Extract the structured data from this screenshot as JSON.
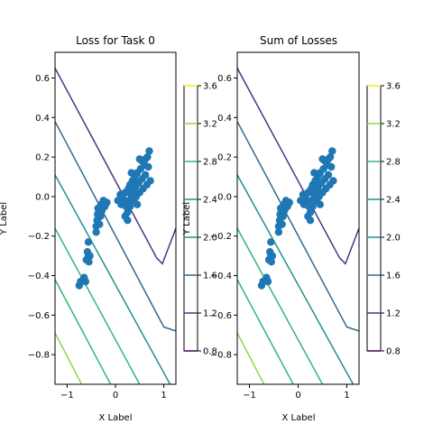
{
  "chart_data": [
    {
      "type": "contour",
      "title": "Loss for Task 0",
      "xlabel": "X Label",
      "ylabel": "Y Label",
      "xlim": [
        -1.25,
        1.25
      ],
      "ylim": [
        -0.95,
        0.73
      ],
      "xticks": [
        {
          "v": -1,
          "label": "−1"
        },
        {
          "v": 0,
          "label": "0"
        },
        {
          "v": 1,
          "label": "1"
        }
      ],
      "yticks": [
        {
          "v": -0.8,
          "label": "−0.8"
        },
        {
          "v": -0.6,
          "label": "−0.6"
        },
        {
          "v": -0.4,
          "label": "−0.4"
        },
        {
          "v": -0.2,
          "label": "−0.2"
        },
        {
          "v": 0.0,
          "label": "0.0"
        },
        {
          "v": 0.2,
          "label": "0.2"
        },
        {
          "v": 0.4,
          "label": "0.4"
        },
        {
          "v": 0.6,
          "label": "0.6"
        }
      ],
      "levels": [
        {
          "level": 1.2,
          "color": "#443983",
          "points": [
            [
              -1.25,
              0.65
            ],
            [
              0.85,
              -0.31
            ],
            [
              0.97,
              -0.34
            ],
            [
              1.25,
              -0.16
            ]
          ]
        },
        {
          "level": 1.6,
          "color": "#31688e",
          "points": [
            [
              -1.25,
              0.38
            ],
            [
              1.0,
              -0.66
            ],
            [
              1.25,
              -0.68
            ]
          ]
        },
        {
          "level": 2.0,
          "color": "#21918c",
          "points": [
            [
              -1.25,
              0.11
            ],
            [
              1.13,
              -0.95
            ]
          ]
        },
        {
          "level": 2.4,
          "color": "#35b779",
          "points": [
            [
              -1.25,
              -0.16
            ],
            [
              0.5,
              -0.95
            ]
          ]
        },
        {
          "level": 2.8,
          "color": "#35b779",
          "points": [
            [
              -1.25,
              -0.42
            ],
            [
              -0.1,
              -0.95
            ]
          ]
        },
        {
          "level": 3.2,
          "color": "#90d743",
          "points": [
            [
              -1.25,
              -0.69
            ],
            [
              -0.7,
              -0.95
            ]
          ]
        }
      ],
      "scatter": {
        "color": "#1f77b4",
        "points": [
          [
            -0.75,
            -0.45
          ],
          [
            -0.72,
            -0.43
          ],
          [
            -0.65,
            -0.41
          ],
          [
            -0.62,
            -0.43
          ],
          [
            -0.6,
            -0.32
          ],
          [
            -0.58,
            -0.28
          ],
          [
            -0.56,
            -0.3
          ],
          [
            -0.55,
            -0.33
          ],
          [
            -0.53,
            -0.3
          ],
          [
            -0.56,
            -0.23
          ],
          [
            -0.4,
            -0.18
          ],
          [
            -0.4,
            -0.15
          ],
          [
            -0.38,
            -0.12
          ],
          [
            -0.37,
            -0.09
          ],
          [
            -0.36,
            -0.06
          ],
          [
            -0.33,
            -0.14
          ],
          [
            -0.31,
            -0.1
          ],
          [
            -0.3,
            -0.04
          ],
          [
            -0.28,
            -0.07
          ],
          [
            -0.25,
            -0.02
          ],
          [
            -0.22,
            -0.05
          ],
          [
            -0.18,
            -0.03
          ],
          [
            0.05,
            -0.02
          ],
          [
            0.1,
            0.01
          ],
          [
            0.12,
            -0.04
          ],
          [
            0.15,
            0.0
          ],
          [
            0.18,
            -0.02
          ],
          [
            0.2,
            0.02
          ],
          [
            0.22,
            -0.05
          ],
          [
            0.25,
            -0.08
          ],
          [
            0.27,
            0.04
          ],
          [
            0.28,
            -0.02
          ],
          [
            0.3,
            0.06
          ],
          [
            0.32,
            0.01
          ],
          [
            0.35,
            0.08
          ],
          [
            0.37,
            0.03
          ],
          [
            0.4,
            0.1
          ],
          [
            0.41,
            0.05
          ],
          [
            0.43,
            0.0
          ],
          [
            0.45,
            0.12
          ],
          [
            0.48,
            0.07
          ],
          [
            0.5,
            0.02
          ],
          [
            0.52,
            0.14
          ],
          [
            0.55,
            0.09
          ],
          [
            0.57,
            0.04
          ],
          [
            0.6,
            0.16
          ],
          [
            0.62,
            0.11
          ],
          [
            0.65,
            0.06
          ],
          [
            0.66,
            0.2
          ],
          [
            0.7,
            0.23
          ],
          [
            0.68,
            0.15
          ],
          [
            0.72,
            0.08
          ],
          [
            0.55,
            0.18
          ],
          [
            0.62,
            0.19
          ],
          [
            0.3,
            -0.05
          ],
          [
            0.25,
            -0.12
          ],
          [
            0.2,
            -0.1
          ],
          [
            0.38,
            -0.02
          ],
          [
            0.45,
            -0.04
          ],
          [
            0.33,
            0.12
          ],
          [
            0.5,
            0.19
          ]
        ]
      }
    },
    {
      "type": "contour",
      "title": "Sum of Losses",
      "xlabel": "X Label",
      "ylabel": "Y Label",
      "xlim": [
        -1.25,
        1.25
      ],
      "ylim": [
        -0.95,
        0.73
      ],
      "xticks": [
        {
          "v": -1,
          "label": "−1"
        },
        {
          "v": 0,
          "label": "0"
        },
        {
          "v": 1,
          "label": "1"
        }
      ],
      "yticks": [
        {
          "v": -0.8,
          "label": "−0.8"
        },
        {
          "v": -0.6,
          "label": "−0.6"
        },
        {
          "v": -0.4,
          "label": "−0.4"
        },
        {
          "v": -0.2,
          "label": "−0.2"
        },
        {
          "v": 0.0,
          "label": "0.0"
        },
        {
          "v": 0.2,
          "label": "0.2"
        },
        {
          "v": 0.4,
          "label": "0.4"
        },
        {
          "v": 0.6,
          "label": "0.6"
        }
      ],
      "levels": [
        {
          "level": 1.2,
          "color": "#443983",
          "points": [
            [
              -1.25,
              0.65
            ],
            [
              0.85,
              -0.31
            ],
            [
              0.97,
              -0.34
            ],
            [
              1.25,
              -0.16
            ]
          ]
        },
        {
          "level": 1.6,
          "color": "#31688e",
          "points": [
            [
              -1.25,
              0.38
            ],
            [
              1.0,
              -0.66
            ],
            [
              1.25,
              -0.68
            ]
          ]
        },
        {
          "level": 2.0,
          "color": "#21918c",
          "points": [
            [
              -1.25,
              0.11
            ],
            [
              1.13,
              -0.95
            ]
          ]
        },
        {
          "level": 2.4,
          "color": "#35b779",
          "points": [
            [
              -1.25,
              -0.16
            ],
            [
              0.5,
              -0.95
            ]
          ]
        },
        {
          "level": 2.8,
          "color": "#35b779",
          "points": [
            [
              -1.25,
              -0.42
            ],
            [
              -0.1,
              -0.95
            ]
          ]
        },
        {
          "level": 3.2,
          "color": "#90d743",
          "points": [
            [
              -1.25,
              -0.69
            ],
            [
              -0.7,
              -0.95
            ]
          ]
        }
      ],
      "scatter": {
        "color": "#1f77b4",
        "points": [
          [
            -0.75,
            -0.45
          ],
          [
            -0.72,
            -0.43
          ],
          [
            -0.65,
            -0.41
          ],
          [
            -0.62,
            -0.43
          ],
          [
            -0.6,
            -0.32
          ],
          [
            -0.58,
            -0.28
          ],
          [
            -0.56,
            -0.3
          ],
          [
            -0.55,
            -0.33
          ],
          [
            -0.53,
            -0.3
          ],
          [
            -0.56,
            -0.23
          ],
          [
            -0.4,
            -0.18
          ],
          [
            -0.4,
            -0.15
          ],
          [
            -0.38,
            -0.12
          ],
          [
            -0.37,
            -0.09
          ],
          [
            -0.36,
            -0.06
          ],
          [
            -0.33,
            -0.14
          ],
          [
            -0.31,
            -0.1
          ],
          [
            -0.3,
            -0.04
          ],
          [
            -0.28,
            -0.07
          ],
          [
            -0.25,
            -0.02
          ],
          [
            -0.22,
            -0.05
          ],
          [
            -0.18,
            -0.03
          ],
          [
            0.05,
            -0.02
          ],
          [
            0.1,
            0.01
          ],
          [
            0.12,
            -0.04
          ],
          [
            0.15,
            0.0
          ],
          [
            0.18,
            -0.02
          ],
          [
            0.2,
            0.02
          ],
          [
            0.22,
            -0.05
          ],
          [
            0.25,
            -0.08
          ],
          [
            0.27,
            0.04
          ],
          [
            0.28,
            -0.02
          ],
          [
            0.3,
            0.06
          ],
          [
            0.32,
            0.01
          ],
          [
            0.35,
            0.08
          ],
          [
            0.37,
            0.03
          ],
          [
            0.4,
            0.1
          ],
          [
            0.41,
            0.05
          ],
          [
            0.43,
            0.0
          ],
          [
            0.45,
            0.12
          ],
          [
            0.48,
            0.07
          ],
          [
            0.5,
            0.02
          ],
          [
            0.52,
            0.14
          ],
          [
            0.55,
            0.09
          ],
          [
            0.57,
            0.04
          ],
          [
            0.6,
            0.16
          ],
          [
            0.62,
            0.11
          ],
          [
            0.65,
            0.06
          ],
          [
            0.66,
            0.2
          ],
          [
            0.7,
            0.23
          ],
          [
            0.68,
            0.15
          ],
          [
            0.72,
            0.08
          ],
          [
            0.55,
            0.18
          ],
          [
            0.62,
            0.19
          ],
          [
            0.3,
            -0.05
          ],
          [
            0.25,
            -0.12
          ],
          [
            0.2,
            -0.1
          ],
          [
            0.38,
            -0.02
          ],
          [
            0.45,
            -0.04
          ],
          [
            0.33,
            0.12
          ],
          [
            0.5,
            0.19
          ]
        ]
      }
    }
  ],
  "colorbars": [
    {
      "range": [
        0.8,
        3.6
      ],
      "ticks": [
        {
          "v": 0.8,
          "label": "0.8",
          "color": "#440154"
        },
        {
          "v": 1.2,
          "label": "1.2",
          "color": "#443983"
        },
        {
          "v": 1.6,
          "label": "1.6",
          "color": "#31688e"
        },
        {
          "v": 2.0,
          "label": "2.0",
          "color": "#21918c"
        },
        {
          "v": 2.4,
          "label": "2.4",
          "color": "#21918c"
        },
        {
          "v": 2.8,
          "label": "2.8",
          "color": "#35b779"
        },
        {
          "v": 3.2,
          "label": "3.2",
          "color": "#90d743"
        },
        {
          "v": 3.6,
          "label": "3.6",
          "color": "#fde725"
        }
      ]
    },
    {
      "range": [
        0.8,
        3.6
      ],
      "ticks": [
        {
          "v": 0.8,
          "label": "0.8",
          "color": "#440154"
        },
        {
          "v": 1.2,
          "label": "1.2",
          "color": "#443983"
        },
        {
          "v": 1.6,
          "label": "1.6",
          "color": "#31688e"
        },
        {
          "v": 2.0,
          "label": "2.0",
          "color": "#21918c"
        },
        {
          "v": 2.4,
          "label": "2.4",
          "color": "#21918c"
        },
        {
          "v": 2.8,
          "label": "2.8",
          "color": "#35b779"
        },
        {
          "v": 3.2,
          "label": "3.2",
          "color": "#90d743"
        },
        {
          "v": 3.6,
          "label": "3.6",
          "color": "#fde725"
        }
      ]
    }
  ]
}
